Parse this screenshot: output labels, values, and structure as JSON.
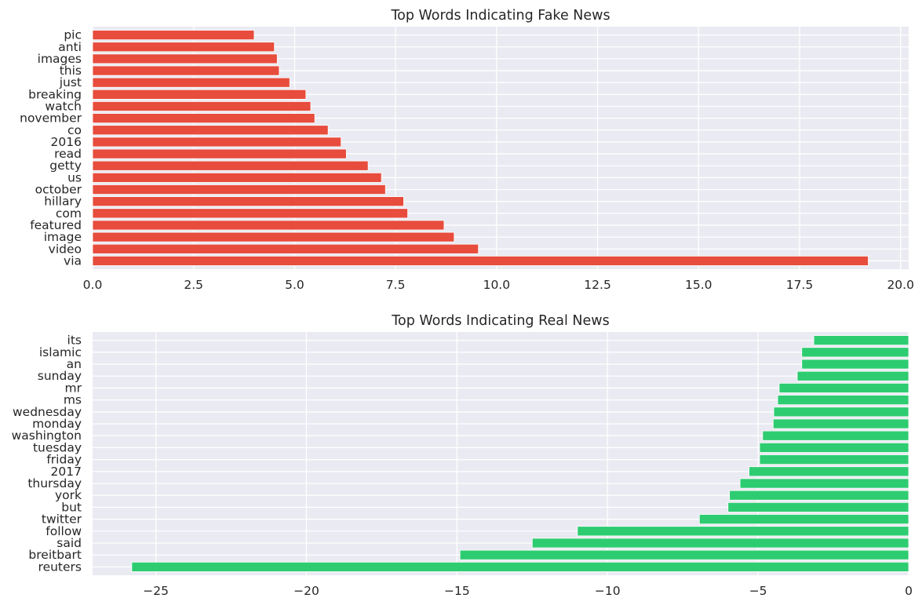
{
  "chart_data": [
    {
      "type": "bar",
      "orientation": "horizontal",
      "title": "Top Words Indicating Fake News",
      "xlabel": "",
      "ylabel": "",
      "categories": [
        "via",
        "video",
        "image",
        "featured",
        "com",
        "hillary",
        "october",
        "us",
        "getty",
        "read",
        "2016",
        "co",
        "november",
        "watch",
        "breaking",
        "just",
        "this",
        "images",
        "anti",
        "pic"
      ],
      "values": [
        19.2,
        9.55,
        8.95,
        8.7,
        7.8,
        7.7,
        7.25,
        7.15,
        6.82,
        6.28,
        6.15,
        5.83,
        5.5,
        5.4,
        5.28,
        4.88,
        4.62,
        4.57,
        4.5,
        4.0
      ],
      "xlim": [
        0,
        20.2
      ],
      "xticks": [
        0,
        2.5,
        5,
        7.5,
        10,
        12.5,
        15,
        17.5,
        20
      ],
      "xtick_labels": [
        "0.0",
        "2.5",
        "5.0",
        "7.5",
        "10.0",
        "12.5",
        "15.0",
        "17.5",
        "20.0"
      ],
      "color": "#e74c3c",
      "grid": true
    },
    {
      "type": "bar",
      "orientation": "horizontal",
      "title": "Top Words Indicating Real News",
      "xlabel": "",
      "ylabel": "",
      "categories": [
        "reuters",
        "breitbart",
        "said",
        "follow",
        "twitter",
        "but",
        "york",
        "thursday",
        "2017",
        "friday",
        "tuesday",
        "washington",
        "monday",
        "wednesday",
        "ms",
        "mr",
        "sunday",
        "an",
        "islamic",
        "its"
      ],
      "values": [
        -25.8,
        -14.9,
        -12.5,
        -11.0,
        -6.95,
        -6.0,
        -5.95,
        -5.6,
        -5.3,
        -4.95,
        -4.95,
        -4.85,
        -4.5,
        -4.48,
        -4.35,
        -4.3,
        -3.7,
        -3.55,
        -3.55,
        -3.15
      ],
      "xlim": [
        -27.1,
        0
      ],
      "xticks": [
        -25,
        -20,
        -15,
        -10,
        -5,
        0
      ],
      "xtick_labels": [
        "−25",
        "−20",
        "−15",
        "−10",
        "−5",
        "0"
      ],
      "color": "#2ecc71",
      "grid": true
    }
  ]
}
